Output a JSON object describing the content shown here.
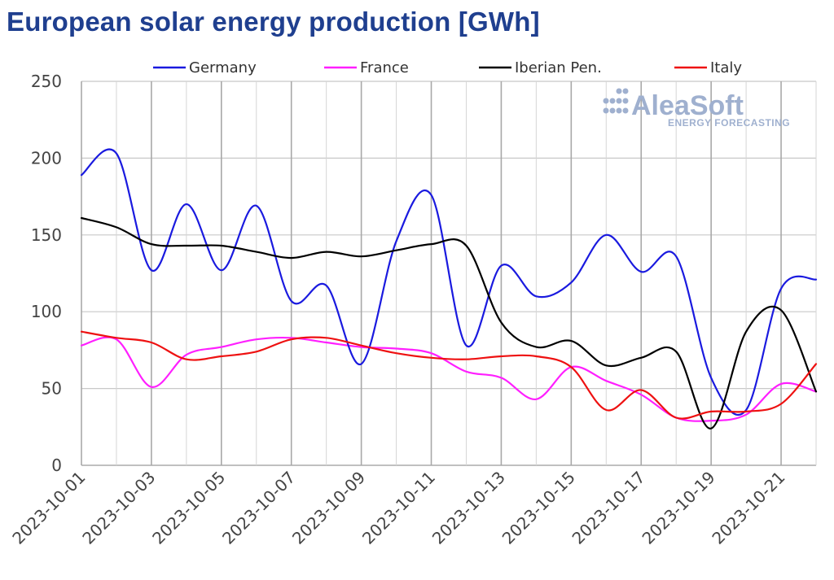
{
  "chart_data": {
    "type": "line",
    "title": "European solar energy production [GWh]",
    "xlabel": "",
    "ylabel": "",
    "ylim": [
      0,
      250
    ],
    "yticks": [
      0,
      50,
      100,
      150,
      200,
      250
    ],
    "x": [
      "2023-10-01",
      "2023-10-02",
      "2023-10-03",
      "2023-10-04",
      "2023-10-05",
      "2023-10-06",
      "2023-10-07",
      "2023-10-08",
      "2023-10-09",
      "2023-10-10",
      "2023-10-11",
      "2023-10-12",
      "2023-10-13",
      "2023-10-14",
      "2023-10-15",
      "2023-10-16",
      "2023-10-17",
      "2023-10-18",
      "2023-10-19",
      "2023-10-20",
      "2023-10-21",
      "2023-10-22"
    ],
    "xtick_labels": [
      "2023-10-01",
      "2023-10-03",
      "2023-10-05",
      "2023-10-07",
      "2023-10-09",
      "2023-10-11",
      "2023-10-13",
      "2023-10-15",
      "2023-10-17",
      "2023-10-19",
      "2023-10-21"
    ],
    "grid": true,
    "legend_position": "top",
    "series": [
      {
        "name": "Germany",
        "color": "#1a1adf",
        "values": [
          189,
          203,
          127,
          170,
          127,
          169,
          107,
          117,
          66,
          146,
          176,
          78,
          130,
          110,
          119,
          150,
          126,
          136,
          57,
          36,
          115,
          121
        ]
      },
      {
        "name": "France",
        "color": "#ff1fff",
        "values": [
          78,
          82,
          51,
          72,
          77,
          82,
          83,
          80,
          77,
          76,
          73,
          61,
          57,
          43,
          64,
          55,
          46,
          31,
          29,
          33,
          53,
          48
        ]
      },
      {
        "name": "Iberian Pen.",
        "color": "#000000",
        "values": [
          161,
          155,
          144,
          143,
          143,
          139,
          135,
          139,
          136,
          140,
          144,
          143,
          93,
          77,
          81,
          65,
          70,
          74,
          24,
          87,
          101,
          48
        ]
      },
      {
        "name": "Italy",
        "color": "#ee1111",
        "values": [
          87,
          83,
          80,
          69,
          71,
          74,
          82,
          83,
          78,
          73,
          70,
          69,
          71,
          71,
          64,
          36,
          49,
          31,
          35,
          35,
          40,
          66
        ]
      }
    ]
  },
  "branding": {
    "logo_text": "AleaSoft",
    "logo_subtext": "ENERGY FORECASTING"
  }
}
